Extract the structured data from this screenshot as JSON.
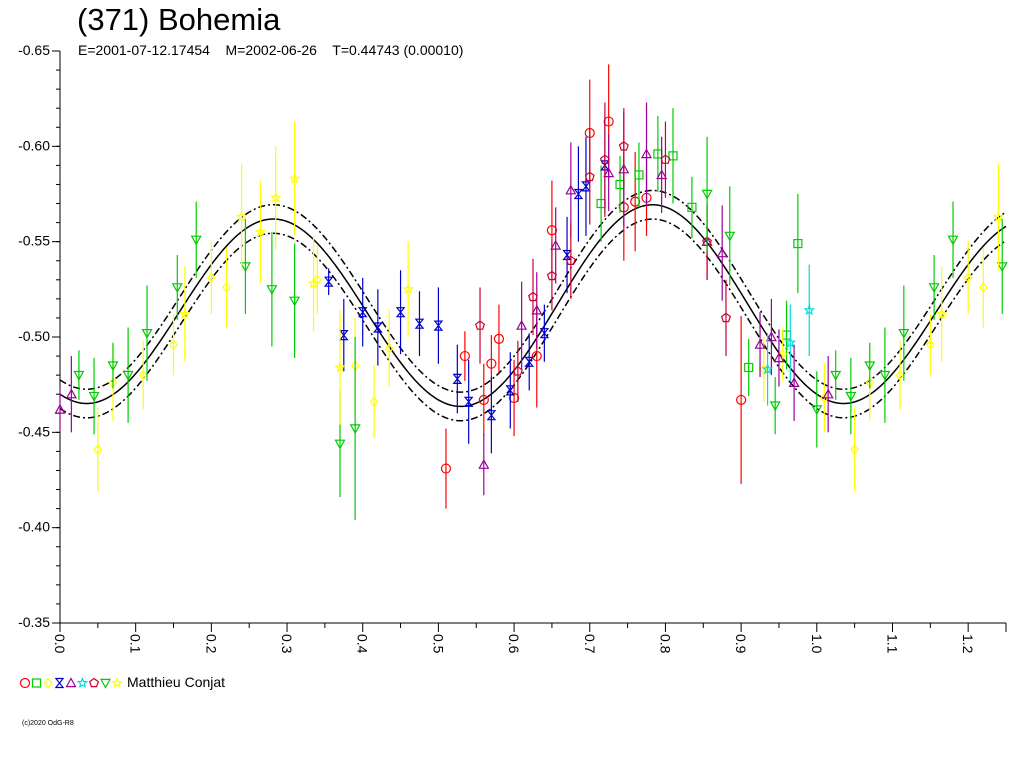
{
  "header": {
    "title": "(371) Bohemia",
    "subtitle": "E=2001-07-12.17454    M=2002-06-26    T=0.44743 (0.00010)"
  },
  "legend": {
    "observer": "Matthieu Conjat"
  },
  "footer": {
    "copyright": "(c)2020 OdG-R8"
  },
  "chart_data": {
    "type": "scatter",
    "title": "(371) Bohemia",
    "xlabel": "",
    "ylabel": "",
    "xlim": [
      0.0,
      1.25
    ],
    "ylim": [
      -0.65,
      -0.35
    ],
    "y_inverted": true,
    "x_ticks": [
      "0.0",
      "0.1",
      "0.2",
      "0.3",
      "0.4",
      "0.5",
      "0.6",
      "0.7",
      "0.8",
      "0.9",
      "1.0",
      "1.1",
      "1.2"
    ],
    "y_ticks": [
      "-0.65",
      "-0.60",
      "-0.55",
      "-0.50",
      "-0.45",
      "-0.40",
      "-0.35"
    ],
    "fit_curve": {
      "mean": -0.515,
      "harmonics": [
        {
          "k": 1,
          "a": -0.0015,
          "b": 0.0035
        },
        {
          "k": 2,
          "a": 0.0465,
          "b": 0.02
        }
      ],
      "envelope": 0.0075
    },
    "series": [
      {
        "name": "",
        "marker": "circle",
        "color": "#ff0000",
        "points": [
          [
            0.51,
            -0.431,
            0.021
          ],
          [
            0.535,
            -0.49,
            0.013
          ],
          [
            0.56,
            -0.467,
            0.019
          ],
          [
            0.57,
            -0.486,
            0.015
          ],
          [
            0.58,
            -0.499,
            0.018
          ],
          [
            0.6,
            -0.468,
            0.02
          ],
          [
            0.63,
            -0.49,
            0.027
          ],
          [
            0.65,
            -0.556,
            0.026
          ],
          [
            0.7,
            -0.607,
            0.028
          ],
          [
            0.725,
            -0.613,
            0.03
          ],
          [
            0.745,
            -0.568,
            0.028
          ],
          [
            0.76,
            -0.571,
            0.026
          ],
          [
            0.775,
            -0.573,
            0.02
          ],
          [
            0.9,
            -0.467,
            0.044
          ]
        ]
      },
      {
        "name": "",
        "marker": "square",
        "color": "#00cc00",
        "points": [
          [
            0.715,
            -0.57,
            0.02
          ],
          [
            0.74,
            -0.58,
            0.015
          ],
          [
            0.765,
            -0.585,
            0.017
          ],
          [
            0.79,
            -0.596,
            0.02
          ],
          [
            0.81,
            -0.595,
            0.025
          ],
          [
            0.835,
            -0.568,
            0.016
          ],
          [
            0.91,
            -0.484,
            0.015
          ],
          [
            0.96,
            -0.501,
            0.018
          ],
          [
            0.975,
            -0.549,
            0.026
          ]
        ]
      },
      {
        "name": "",
        "marker": "diamond",
        "color": "#ffff00",
        "points": [
          [
            0.05,
            -0.441,
            0.022
          ],
          [
            0.07,
            -0.476,
            0.02
          ],
          [
            0.11,
            -0.48,
            0.018
          ],
          [
            0.15,
            -0.496,
            0.016
          ],
          [
            0.2,
            -0.531,
            0.019
          ],
          [
            0.22,
            -0.526,
            0.021
          ],
          [
            0.34,
            -0.53,
            0.018
          ],
          [
            0.39,
            -0.485,
            0.025
          ],
          [
            0.415,
            -0.466,
            0.019
          ],
          [
            0.435,
            -0.494,
            0.02
          ],
          [
            0.93,
            -0.483,
            0.017
          ],
          [
            0.955,
            -0.491,
            0.014
          ],
          [
            1.01,
            -0.468,
            0.018
          ],
          [
            1.05,
            -0.441,
            0.022
          ],
          [
            1.07,
            -0.476,
            0.02
          ],
          [
            1.11,
            -0.48,
            0.018
          ],
          [
            1.15,
            -0.496,
            0.016
          ],
          [
            1.2,
            -0.531,
            0.019
          ],
          [
            1.22,
            -0.526,
            0.021
          ]
        ]
      },
      {
        "name": "",
        "marker": "hourglass",
        "color": "#0000cc",
        "points": [
          [
            0.355,
            -0.529,
            0.007
          ],
          [
            0.375,
            -0.501,
            0.019
          ],
          [
            0.4,
            -0.513,
            0.018
          ],
          [
            0.42,
            -0.505,
            0.02
          ],
          [
            0.45,
            -0.513,
            0.022
          ],
          [
            0.475,
            -0.507,
            0.017
          ],
          [
            0.5,
            -0.506,
            0.02
          ],
          [
            0.525,
            -0.478,
            0.018
          ],
          [
            0.54,
            -0.466,
            0.022
          ],
          [
            0.57,
            -0.459,
            0.02
          ],
          [
            0.595,
            -0.472,
            0.02
          ],
          [
            0.62,
            -0.487,
            0.015
          ],
          [
            0.64,
            -0.502,
            0.015
          ],
          [
            0.67,
            -0.543,
            0.02
          ],
          [
            0.685,
            -0.575,
            0.025
          ],
          [
            0.695,
            -0.579,
            0.026
          ],
          [
            0.72,
            -0.59,
            0.025
          ]
        ]
      },
      {
        "name": "",
        "marker": "triangle-up",
        "color": "#990099",
        "points": [
          [
            0.0,
            -0.462,
            0.012
          ],
          [
            0.015,
            -0.47,
            0.02
          ],
          [
            0.56,
            -0.433,
            0.016
          ],
          [
            0.61,
            -0.506,
            0.023
          ],
          [
            0.63,
            -0.514,
            0.02
          ],
          [
            0.655,
            -0.548,
            0.02
          ],
          [
            0.675,
            -0.577,
            0.025
          ],
          [
            0.725,
            -0.586,
            0.02
          ],
          [
            0.745,
            -0.588,
            0.03
          ],
          [
            0.775,
            -0.596,
            0.027
          ],
          [
            0.795,
            -0.585,
            0.02
          ],
          [
            0.855,
            -0.55,
            0.02
          ],
          [
            0.875,
            -0.544,
            0.025
          ],
          [
            0.925,
            -0.496,
            0.017
          ],
          [
            0.94,
            -0.5,
            0.02
          ],
          [
            0.95,
            -0.489,
            0.015
          ],
          [
            0.97,
            -0.476,
            0.02
          ],
          [
            1.015,
            -0.47,
            0.02
          ]
        ]
      },
      {
        "name": "",
        "marker": "star",
        "color": "#00dddd",
        "points": [
          [
            0.935,
            -0.483,
            0.019
          ],
          [
            0.965,
            -0.497,
            0.02
          ],
          [
            0.99,
            -0.514,
            0.024
          ]
        ]
      },
      {
        "name": "",
        "marker": "pentagon",
        "color": "#cc0033",
        "points": [
          [
            0.555,
            -0.506,
            0.02
          ],
          [
            0.605,
            -0.482,
            0.016
          ],
          [
            0.625,
            -0.521,
            0.02
          ],
          [
            0.65,
            -0.532,
            0.018
          ],
          [
            0.675,
            -0.54,
            0.02
          ],
          [
            0.7,
            -0.584,
            0.025
          ],
          [
            0.72,
            -0.593,
            0.03
          ],
          [
            0.745,
            -0.6,
            0.02
          ],
          [
            0.8,
            -0.593,
            0.02
          ],
          [
            0.855,
            -0.55,
            0.02
          ],
          [
            0.88,
            -0.51,
            0.02
          ]
        ]
      },
      {
        "name": "",
        "marker": "triangle-down",
        "color": "#00cc00",
        "points": [
          [
            0.025,
            -0.48,
            0.013
          ],
          [
            0.045,
            -0.469,
            0.02
          ],
          [
            0.07,
            -0.485,
            0.012
          ],
          [
            0.09,
            -0.48,
            0.025
          ],
          [
            0.115,
            -0.502,
            0.025
          ],
          [
            0.155,
            -0.526,
            0.017
          ],
          [
            0.18,
            -0.551,
            0.02
          ],
          [
            0.245,
            -0.537,
            0.025
          ],
          [
            0.28,
            -0.525,
            0.03
          ],
          [
            0.31,
            -0.519,
            0.03
          ],
          [
            0.37,
            -0.444,
            0.028
          ],
          [
            0.39,
            -0.452,
            0.048
          ],
          [
            0.855,
            -0.575,
            0.03
          ],
          [
            0.885,
            -0.553,
            0.026
          ],
          [
            0.945,
            -0.464,
            0.015
          ],
          [
            1.0,
            -0.462,
            0.02
          ],
          [
            1.025,
            -0.48,
            0.013
          ],
          [
            1.045,
            -0.469,
            0.02
          ],
          [
            1.07,
            -0.485,
            0.012
          ],
          [
            1.09,
            -0.48,
            0.025
          ],
          [
            1.115,
            -0.502,
            0.025
          ],
          [
            1.155,
            -0.526,
            0.017
          ],
          [
            1.18,
            -0.551,
            0.02
          ],
          [
            1.245,
            -0.537,
            0.025
          ]
        ]
      },
      {
        "name": "",
        "marker": "star",
        "color": "#ffff00",
        "points": [
          [
            0.165,
            -0.512,
            0.025
          ],
          [
            0.24,
            -0.563,
            0.028
          ],
          [
            0.265,
            -0.555,
            0.027
          ],
          [
            0.285,
            -0.573,
            0.027
          ],
          [
            0.31,
            -0.583,
            0.03
          ],
          [
            0.335,
            -0.528,
            0.025
          ],
          [
            0.37,
            -0.484,
            0.03
          ],
          [
            0.46,
            -0.525,
            0.025
          ],
          [
            1.165,
            -0.512,
            0.025
          ],
          [
            1.24,
            -0.563,
            0.028
          ]
        ]
      }
    ]
  }
}
